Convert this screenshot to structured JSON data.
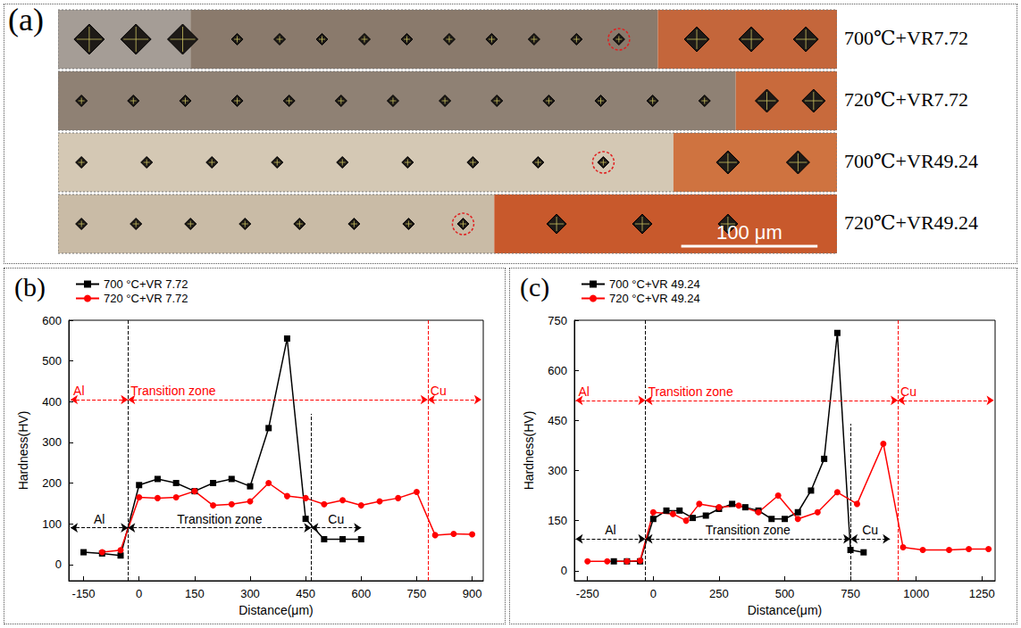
{
  "micrograph": {
    "label": "(a)",
    "rows": [
      "700℃+VR7.72",
      "720℃+VR7.72",
      "700℃+VR49.24",
      "720℃+VR49.24"
    ],
    "scale_bar": "100 μm"
  },
  "chart_data": [
    {
      "type": "line",
      "title": "(b)",
      "x_label": "Distance(μm)",
      "y_label": "Hardness(HV)",
      "xlim": [
        -190,
        930
      ],
      "xticks": [
        -150,
        0,
        150,
        300,
        450,
        600,
        750,
        900
      ],
      "ylim": [
        -40,
        600
      ],
      "yticks": [
        0,
        100,
        200,
        300,
        400,
        500,
        600
      ],
      "grid": false,
      "legend": "upper left",
      "series": [
        {
          "name": "700 °C+VR 7.72",
          "color": "#000000",
          "marker": "square",
          "x": [
            -150,
            -100,
            -50,
            0,
            50,
            100,
            150,
            200,
            250,
            300,
            350,
            400,
            450,
            500,
            550,
            600
          ],
          "values": [
            30,
            27,
            22,
            195,
            210,
            200,
            180,
            200,
            210,
            192,
            335,
            555,
            112,
            62,
            62,
            62
          ]
        },
        {
          "name": "720 °C+VR 7.72",
          "color": "#ff0000",
          "marker": "circle",
          "x": [
            -100,
            -50,
            0,
            50,
            100,
            150,
            200,
            250,
            300,
            350,
            400,
            450,
            500,
            550,
            600,
            650,
            700,
            750,
            800,
            850,
            900
          ],
          "values": [
            30,
            35,
            165,
            163,
            165,
            180,
            145,
            148,
            155,
            200,
            168,
            163,
            148,
            158,
            145,
            155,
            163,
            178,
            72,
            75,
            74
          ]
        }
      ],
      "annotations": [
        {
          "text": "Al",
          "x": [
            -185,
            -30
          ],
          "y": 405,
          "color": "#ff0000"
        },
        {
          "text": "Transition zone",
          "x": [
            -30,
            780
          ],
          "y": 405,
          "color": "#ff0000"
        },
        {
          "text": "Cu",
          "x": [
            780,
            925
          ],
          "y": 405,
          "color": "#ff0000"
        },
        {
          "text": "Al",
          "x": [
            -185,
            -30
          ],
          "y": 90,
          "color": "#000000"
        },
        {
          "text": "Transition zone",
          "x": [
            -30,
            465
          ],
          "y": 90,
          "color": "#000000"
        },
        {
          "text": "Cu",
          "x": [
            465,
            600
          ],
          "y": 90,
          "color": "#000000"
        }
      ],
      "boundaries": [
        {
          "x": -30,
          "y": [
            -40,
            600
          ],
          "color": "#000000"
        },
        {
          "x": 465,
          "y": [
            -40,
            370
          ],
          "color": "#000000"
        },
        {
          "x": 780,
          "y": [
            -40,
            600
          ],
          "color": "#ff0000"
        }
      ]
    },
    {
      "type": "line",
      "title": "(c)",
      "x_label": "Distance(μm)",
      "y_label": "Hardness(HV)",
      "xlim": [
        -300,
        1300
      ],
      "xticks": [
        -250,
        0,
        250,
        500,
        750,
        1000,
        1250
      ],
      "ylim": [
        -30,
        750
      ],
      "yticks": [
        0,
        150,
        300,
        450,
        600,
        750
      ],
      "grid": false,
      "legend": "upper left",
      "series": [
        {
          "name": "700 °C+VR 49.24",
          "color": "#000000",
          "marker": "square",
          "x": [
            -150,
            -100,
            -50,
            0,
            50,
            100,
            150,
            200,
            250,
            300,
            350,
            400,
            450,
            500,
            550,
            600,
            650,
            700,
            750,
            800
          ],
          "values": [
            28,
            28,
            28,
            155,
            180,
            180,
            158,
            165,
            185,
            200,
            190,
            180,
            155,
            155,
            175,
            240,
            335,
            712,
            62,
            55
          ]
        },
        {
          "name": "720 °C+VR 49.24",
          "color": "#ff0000",
          "marker": "circle",
          "x": [
            -250,
            -175,
            -100,
            -50,
            0,
            75,
            125,
            175,
            250,
            325,
            400,
            475,
            550,
            625,
            700,
            775,
            875,
            950,
            1025,
            1125,
            1200,
            1275
          ],
          "values": [
            28,
            28,
            28,
            30,
            175,
            170,
            150,
            200,
            190,
            195,
            175,
            225,
            155,
            175,
            235,
            200,
            380,
            70,
            62,
            62,
            65,
            65
          ]
        }
      ],
      "annotations": [
        {
          "text": "Al",
          "x": [
            -295,
            -30
          ],
          "y": 510,
          "color": "#ff0000"
        },
        {
          "text": "Transition zone",
          "x": [
            -30,
            930
          ],
          "y": 510,
          "color": "#ff0000"
        },
        {
          "text": "Cu",
          "x": [
            930,
            1295
          ],
          "y": 510,
          "color": "#ff0000"
        },
        {
          "text": "Al",
          "x": [
            -295,
            -30
          ],
          "y": 95,
          "color": "#000000"
        },
        {
          "text": "Transition zone",
          "x": [
            -30,
            750
          ],
          "y": 95,
          "color": "#000000"
        },
        {
          "text": "Cu",
          "x": [
            750,
            900
          ],
          "y": 95,
          "color": "#000000"
        }
      ],
      "boundaries": [
        {
          "x": -30,
          "y": [
            -30,
            750
          ],
          "color": "#000000"
        },
        {
          "x": 750,
          "y": [
            -30,
            440
          ],
          "color": "#000000"
        },
        {
          "x": 930,
          "y": [
            -30,
            750
          ],
          "color": "#ff0000"
        }
      ]
    }
  ]
}
